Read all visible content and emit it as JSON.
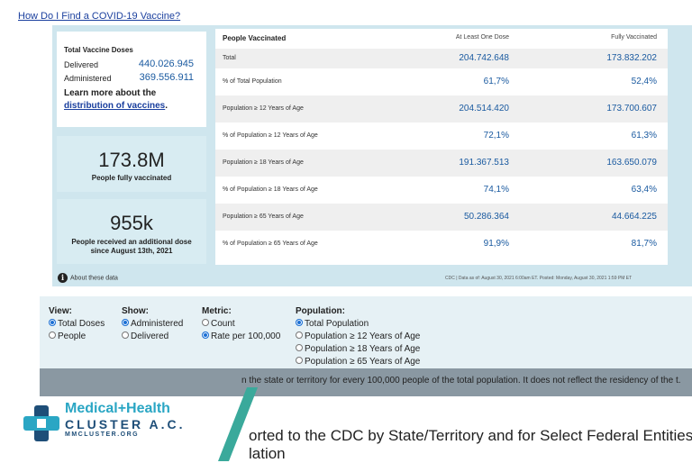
{
  "top_link": "How Do I Find a COVID-19 Vaccine?",
  "total_card": {
    "title": "Total Vaccine Doses",
    "delivered_label": "Delivered",
    "delivered_value": "440.026.945",
    "administered_label": "Administered",
    "administered_value": "369.556.911",
    "learn_prefix": "Learn more about the",
    "learn_link": "distribution of vaccines",
    "learn_suffix": "."
  },
  "stats": [
    {
      "value": "173.8M",
      "caption": "People fully vaccinated"
    },
    {
      "value": "955k",
      "caption": "People received an additional dose since August 13th, 2021"
    }
  ],
  "table": {
    "header": {
      "label": "People Vaccinated",
      "col1": "At Least One Dose",
      "col2": "Fully Vaccinated"
    },
    "rows": [
      {
        "label": "Total",
        "one_dose": "204.742.648",
        "fully": "173.832.202"
      },
      {
        "label": "% of Total Population",
        "one_dose": "61,7%",
        "fully": "52,4%"
      },
      {
        "label": "Population ≥ 12 Years of Age",
        "one_dose": "204.514.420",
        "fully": "173.700.607"
      },
      {
        "label": "% of Population ≥ 12 Years of Age",
        "one_dose": "72,1%",
        "fully": "61,3%"
      },
      {
        "label": "Population ≥ 18 Years of Age",
        "one_dose": "191.367.513",
        "fully": "163.650.079"
      },
      {
        "label": "% of Population ≥ 18 Years of Age",
        "one_dose": "74,1%",
        "fully": "63,4%"
      },
      {
        "label": "Population ≥ 65 Years of Age",
        "one_dose": "50.286.364",
        "fully": "44.664.225"
      },
      {
        "label": "% of Population ≥ 65 Years of Age",
        "one_dose": "91,9%",
        "fully": "81,7%"
      }
    ]
  },
  "about": "About these data",
  "source": "CDC | Data as of: August 30, 2021 6:00am ET. Posted: Monday, August 30, 2021 1:59 PM ET",
  "controls": {
    "view": {
      "heading": "View:",
      "options": [
        {
          "label": "Total Doses",
          "selected": true
        },
        {
          "label": "People",
          "selected": false
        }
      ]
    },
    "show": {
      "heading": "Show:",
      "options": [
        {
          "label": "Administered",
          "selected": true
        },
        {
          "label": "Delivered",
          "selected": false
        }
      ]
    },
    "metric": {
      "heading": "Metric:",
      "options": [
        {
          "label": "Count",
          "selected": false
        },
        {
          "label": "Rate per 100,000",
          "selected": true
        }
      ]
    },
    "population": {
      "heading": "Population:",
      "options": [
        {
          "label": "Total Population",
          "selected": true
        },
        {
          "label": "Population ≥ 12 Years of Age",
          "selected": false
        },
        {
          "label": "Population ≥ 18 Years of Age",
          "selected": false
        },
        {
          "label": "Population ≥ 65 Years of Age",
          "selected": false
        }
      ]
    }
  },
  "note": "n the state or territory for every 100,000 people of the total population. It does not reflect the residency of the t.",
  "big_text_line1": "orted to the CDC by State/Territory and for Select Federal Entities",
  "big_text_line2": "lation",
  "logo": {
    "name": "Medical+Health",
    "sub": "CLUSTER A.C.",
    "url": "MMCLUSTER.ORG"
  },
  "colors": {
    "accent": "#1a5aa0",
    "panel": "#cfe6ee",
    "logo_teal": "#2aa6c4",
    "logo_navy": "#1e4e78"
  }
}
